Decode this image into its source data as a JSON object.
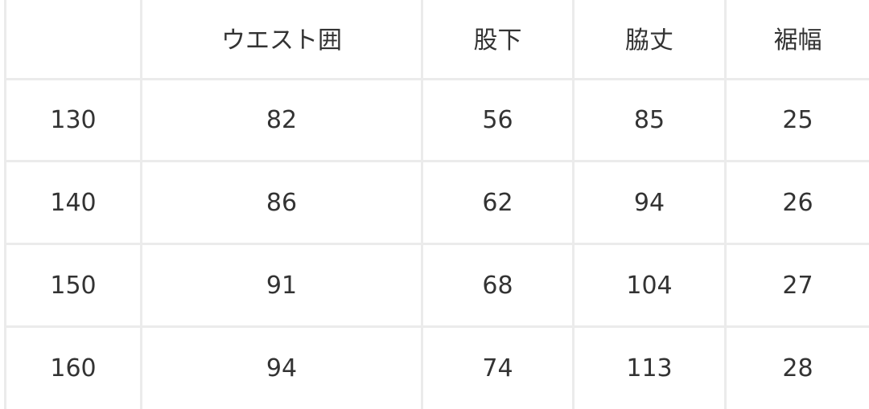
{
  "headers": [
    "",
    "ウエスト囲",
    "股下",
    "脇丈",
    "裾幅"
  ],
  "rows": [
    [
      "130",
      "82",
      "56",
      "85",
      "25"
    ],
    [
      "140",
      "86",
      "62",
      "94",
      "26"
    ],
    [
      "150",
      "91",
      "68",
      "104",
      "27"
    ],
    [
      "160",
      "94",
      "74",
      "113",
      "28"
    ]
  ]
}
